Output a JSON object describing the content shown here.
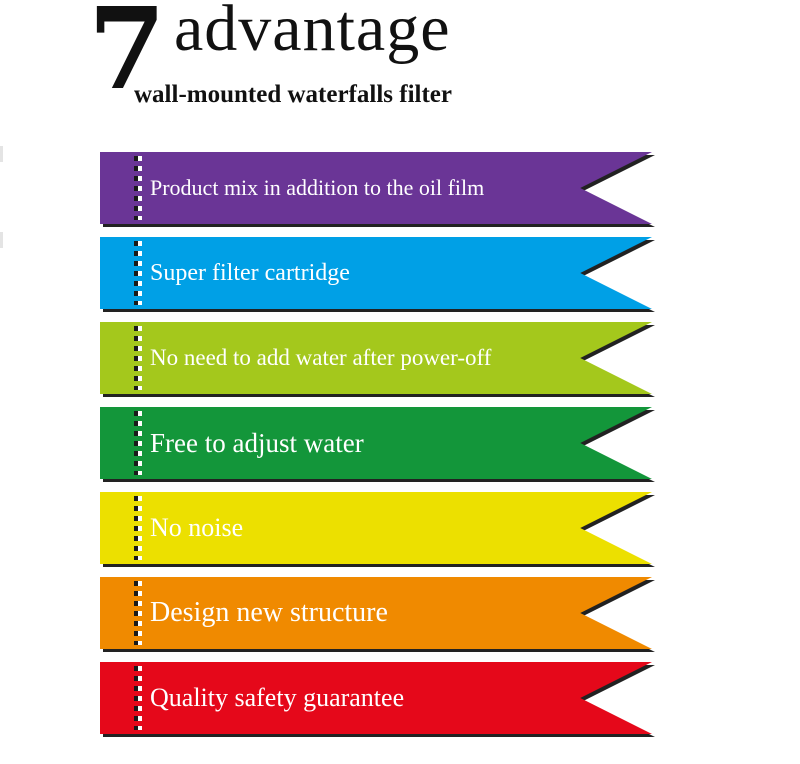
{
  "header": {
    "number": "7",
    "title": "advantage",
    "subtitle": "wall-mounted waterfalls filter"
  },
  "advantages": [
    {
      "label": "Product mix in addition to the oil film",
      "color": "#6a3596"
    },
    {
      "label": "Super filter cartridge",
      "color": "#00a0e6"
    },
    {
      "label": "No need to add water after power-off",
      "color": "#a4c81c"
    },
    {
      "label": "Free to adjust water",
      "color": "#13963a"
    },
    {
      "label": "No noise",
      "color": "#ece000"
    },
    {
      "label": "Design new structure",
      "color": "#f08a00"
    },
    {
      "label": "Quality safety guarantee",
      "color": "#e5081a"
    }
  ]
}
